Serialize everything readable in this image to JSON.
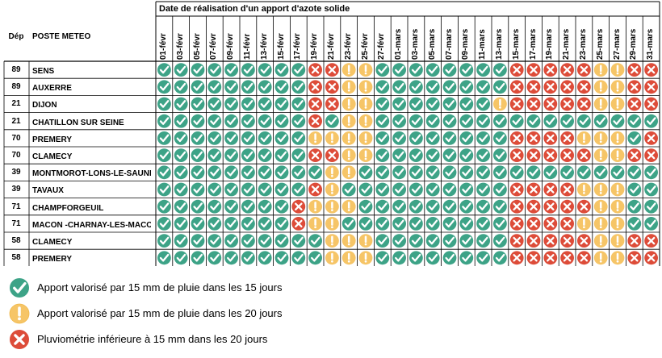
{
  "header": {
    "title": "Date de réalisation d'un apport d'azote solide",
    "dep_label": "Dép",
    "station_label": "POSTE METEO"
  },
  "dates": [
    "01-févr",
    "03-févr",
    "05-févr",
    "07-févr",
    "09-févr",
    "11-févr",
    "13-févr",
    "15-févr",
    "17-févr",
    "19-févr",
    "21-févr",
    "23-févr",
    "25-févr",
    "27-févr",
    "01-mars",
    "03-mars",
    "05-mars",
    "07-mars",
    "09-mars",
    "11-mars",
    "13-mars",
    "15-mars",
    "17-mars",
    "19-mars",
    "21-mars",
    "23-mars",
    "25-mars",
    "27-mars",
    "29-mars",
    "31-mars"
  ],
  "rows": [
    {
      "dep": "89",
      "station": "SENS",
      "status": "GGGGGGGGGRRYYGGGGGGGGRRRRRYYRR"
    },
    {
      "dep": "89",
      "station": "AUXERRE",
      "status": "GGGGGGGGGRRYYGGGGGGGGRRRRRYYRR"
    },
    {
      "dep": "21",
      "station": "DIJON",
      "status": "GGGGGGGGGRRYYGGGGGGGYRRRRRYYRR"
    },
    {
      "dep": "21",
      "station": "CHATILLON SUR SEINE",
      "status": "GGGGGGGGGRGYYGGGGGGGGGGGGGGGGG"
    },
    {
      "dep": "70",
      "station": "PREMERY",
      "status": "GGGGGGGGGYYYYGGGGGGGGRRRRYYYGR"
    },
    {
      "dep": "70",
      "station": "CLAMECY",
      "status": "GGGGGGGGGRRYYGGGGGGGGRRRRRYYRR"
    },
    {
      "dep": "39",
      "station": "MONTMOROT-LONS-LE-SAUNIER",
      "status": "GGGGGGGGGGYYGGGGGGGGGGGGGGGGGG"
    },
    {
      "dep": "39",
      "station": "TAVAUX",
      "status": "GGGGGGGGGRYGGGGGGGGGGRRRRYYYGG"
    },
    {
      "dep": "71",
      "station": "CHAMPFORGEUIL",
      "status": "GGGGGGGGRYYYGGGGGGGGGRRRRRYYGG"
    },
    {
      "dep": "71",
      "station": "MACON -CHARNAY-LES-MACON",
      "status": "GGGGGGGGRYYGGGGGGGGGGRRRRYYYGG"
    },
    {
      "dep": "58",
      "station": "CLAMECY",
      "status": "GGGGGGGGGGYYYGGGGGGGGRRRRRYYRR"
    },
    {
      "dep": "58",
      "station": "PREMERY",
      "status": "GGGGGGGGGGYYYGGGGGGGGRRRRRYYRR"
    }
  ],
  "legend": [
    {
      "kind": "G",
      "text": "Apport valorisé par 15 mm de pluie dans les 15 jours"
    },
    {
      "kind": "Y",
      "text": "Apport valorisé par 15 mm de pluie dans les 20 jours"
    },
    {
      "kind": "R",
      "text": "Pluviométrie inférieure à 15 mm dans les 20 jours"
    }
  ],
  "colors": {
    "green": "#3da387",
    "yellow": "#f6c567",
    "red": "#dd4c39",
    "border": "#000000"
  }
}
